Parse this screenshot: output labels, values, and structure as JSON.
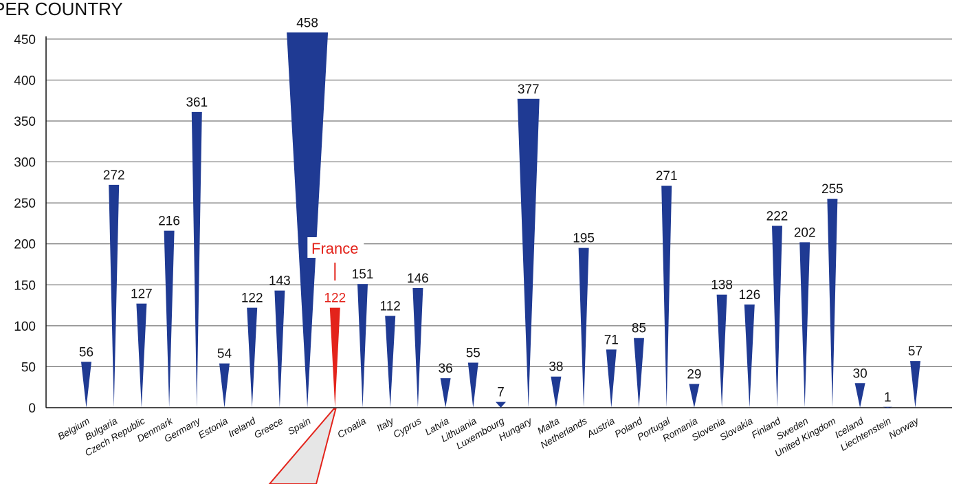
{
  "chart_data": {
    "type": "bar",
    "title": "PER COUNTRY",
    "xlabel": "",
    "ylabel": "",
    "ylim": [
      0,
      450
    ],
    "yticks": [
      0,
      50,
      100,
      150,
      200,
      250,
      300,
      350,
      400,
      450
    ],
    "grid": true,
    "bar_shape": "inverted-triangle",
    "colors": {
      "bar": "#1f3a93",
      "highlight": "#e3231b",
      "grid": "#555555",
      "callout_fill": "#e6e6e6"
    },
    "highlight": {
      "category": "France",
      "label": "France",
      "value": 122
    },
    "categories": [
      "Belgium",
      "Bulgaria",
      "Czech Republic",
      "Denmark",
      "Germany",
      "Estonia",
      "Ireland",
      "Greece",
      "Spain",
      "France",
      "Croatia",
      "Italy",
      "Cyprus",
      "Latvia",
      "Lithuania",
      "Luxembourg",
      "Hungary",
      "Malta",
      "Netherlands",
      "Austria",
      "Poland",
      "Portugal",
      "Romania",
      "Slovenia",
      "Slovakia",
      "Finland",
      "Sweden",
      "United Kingdom",
      "Iceland",
      "Liechtenstein",
      "Norway"
    ],
    "values": [
      56,
      272,
      127,
      216,
      361,
      54,
      122,
      143,
      458,
      122,
      151,
      112,
      146,
      36,
      55,
      7,
      377,
      38,
      195,
      71,
      85,
      271,
      29,
      138,
      126,
      222,
      202,
      255,
      30,
      1,
      57
    ],
    "x_tick_labels": [
      "Belgium",
      "Bulgaria",
      "Czech Republic",
      "Denmark",
      "Germany",
      "Estonia",
      "Ireland",
      "Greece",
      "Spain",
      "",
      "Croatia",
      "Italy",
      "Cyprus",
      "Latvia",
      "Lithuania",
      "Luxembourg",
      "Hungary",
      "Malta",
      "Netherlands",
      "Austria",
      "Poland",
      "Portugal",
      "Romania",
      "Slovenia",
      "Slovakia",
      "Finland",
      "Sweden",
      "United Kingdom",
      "Iceland",
      "Liechtenstein",
      "Norway"
    ]
  }
}
